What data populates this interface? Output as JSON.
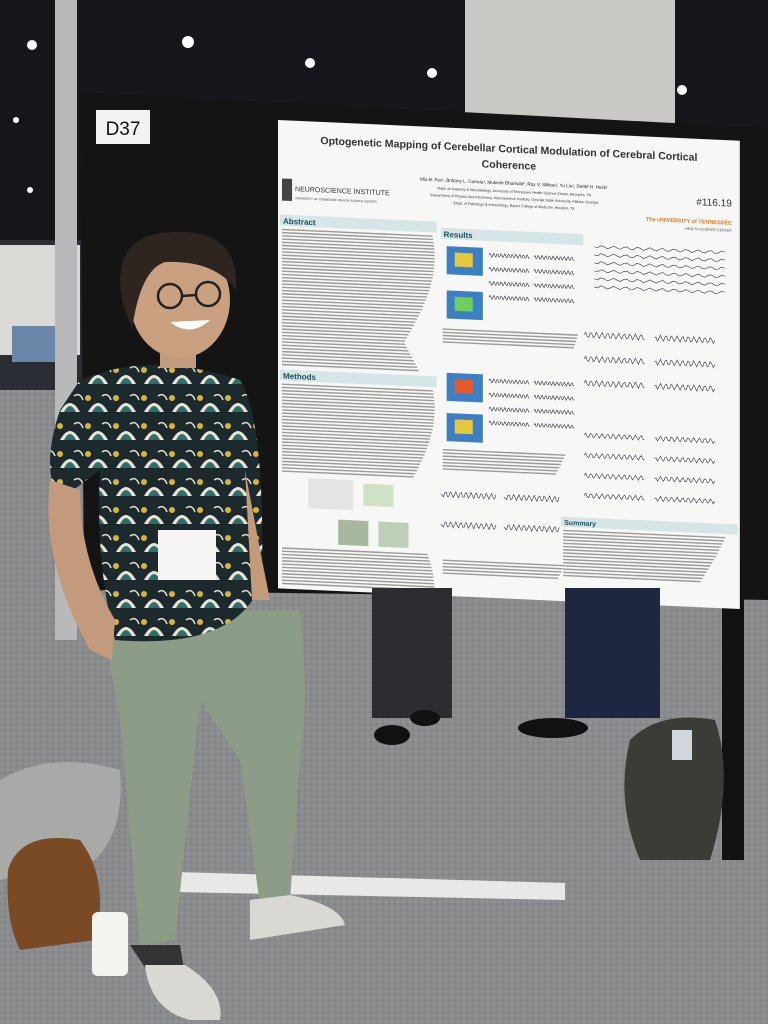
{
  "board_label": "D37",
  "poster": {
    "title": [
      "Optogenetic Mapping of Cerebellar Cortical Modulation of Cerebral Cortical",
      "Coherence"
    ],
    "authors": "Mia B. Fox¹, Brittany L. Correia¹, Mukesh Dhamala², Roy V. Sillitoe³, Yu Liu¹, Detlef H. Heck¹",
    "affiliations": [
      "¹Dept. of Anatomy & Neurobiology, University of Tennessee Health Science Center, Memphis, TN",
      "²Department of Physics and Astronomy, Neuroscience Institute, Georgia State University, Atlanta, Georgia",
      "³Dept. of Pathology & Immunology, Baylor College of Medicine, Houston, TX"
    ],
    "number": "#116.19",
    "left_logo": {
      "name": "NEUROSCIENCE INSTITUTE",
      "sub": "UNIVERSITY OF TENNESSEE HEALTH SCIENCE CENTER"
    },
    "right_logo": {
      "name": "The UNIVERSITY of TENNESSEE",
      "sub": "HEALTH SCIENCE CENTER"
    },
    "sections": [
      "Abstract",
      "Results",
      "Methods",
      "Summary"
    ]
  }
}
